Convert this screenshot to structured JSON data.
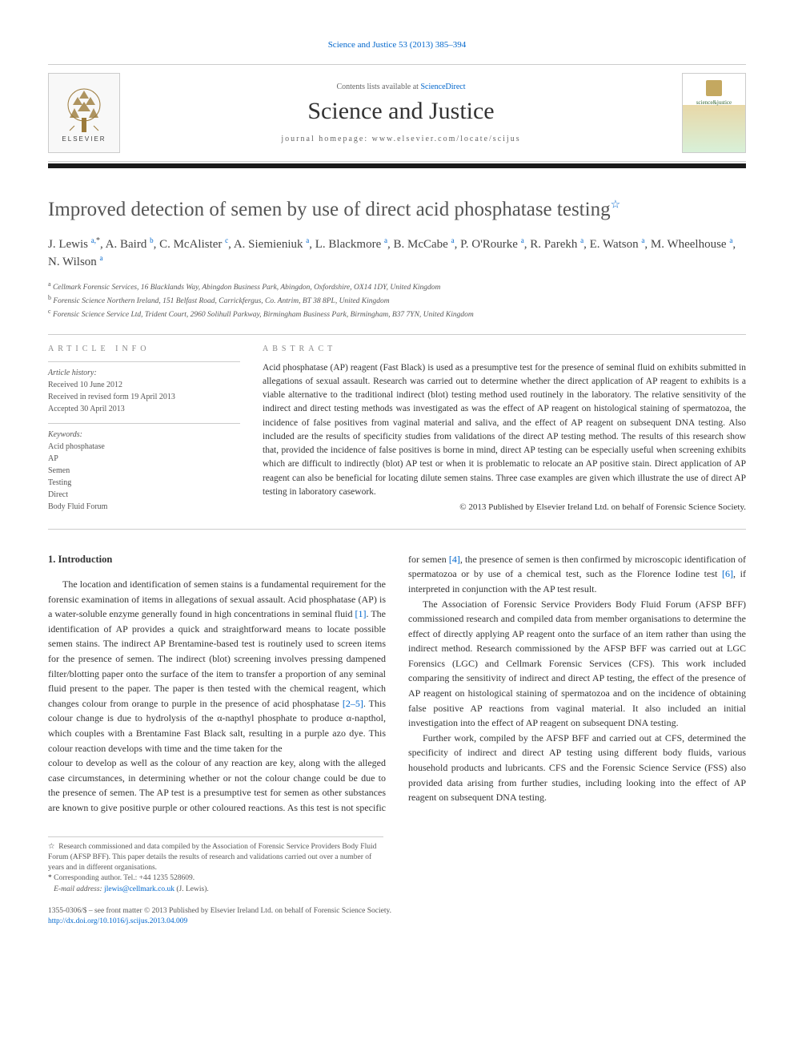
{
  "top_link": {
    "journal": "Science and Justice",
    "citation": "53 (2013) 385–394"
  },
  "masthead": {
    "elsevier": "ELSEVIER",
    "contents_prefix": "Contents lists available at ",
    "contents_link": "ScienceDirect",
    "journal_title": "Science and Justice",
    "homepage_label": "journal homepage: www.elsevier.com/locate/scijus",
    "cover_text": "science&justice"
  },
  "black_bar_color": "#1a1a1a",
  "article": {
    "title": "Improved detection of semen by use of direct acid phosphatase testing",
    "title_star": "☆",
    "authors_html": "J. Lewis <span class='sup'>a,</span><span class='sup-star'>*</span>, A. Baird <span class='sup'>b</span>, C. McAlister <span class='sup'>c</span>, A. Siemieniuk <span class='sup'>a</span>, L. Blackmore <span class='sup'>a</span>, B. McCabe <span class='sup'>a</span>, P. O'Rourke <span class='sup'>a</span>, R. Parekh <span class='sup'>a</span>, E. Watson <span class='sup'>a</span>, M. Wheelhouse <span class='sup'>a</span>, N. Wilson <span class='sup'>a</span>",
    "affiliations": [
      {
        "tag": "a",
        "text": "Cellmark Forensic Services, 16 Blacklands Way, Abingdon Business Park, Abingdon, Oxfordshire, OX14 1DY, United Kingdom"
      },
      {
        "tag": "b",
        "text": "Forensic Science Northern Ireland, 151 Belfast Road, Carrickfergus, Co. Antrim, BT 38 8PL, United Kingdom"
      },
      {
        "tag": "c",
        "text": "Forensic Science Service Ltd, Trident Court, 2960 Solihull Parkway, Birmingham Business Park, Birmingham, B37 7YN, United Kingdom"
      }
    ]
  },
  "article_info": {
    "heading": "article info",
    "history_label": "Article history:",
    "history": [
      "Received 10 June 2012",
      "Received in revised form 19 April 2013",
      "Accepted 30 April 2013"
    ],
    "keywords_label": "Keywords:",
    "keywords": [
      "Acid phosphatase",
      "AP",
      "Semen",
      "Testing",
      "Direct",
      "Body Fluid Forum"
    ]
  },
  "abstract": {
    "heading": "abstract",
    "text": "Acid phosphatase (AP) reagent (Fast Black) is used as a presumptive test for the presence of seminal fluid on exhibits submitted in allegations of sexual assault. Research was carried out to determine whether the direct application of AP reagent to exhibits is a viable alternative to the traditional indirect (blot) testing method used routinely in the laboratory. The relative sensitivity of the indirect and direct testing methods was investigated as was the effect of AP reagent on histological staining of spermatozoa, the incidence of false positives from vaginal material and saliva, and the effect of AP reagent on subsequent DNA testing. Also included are the results of specificity studies from validations of the direct AP testing method. The results of this research show that, provided the incidence of false positives is borne in mind, direct AP testing can be especially useful when screening exhibits which are difficult to indirectly (blot) AP test or when it is problematic to relocate an AP positive stain. Direct application of AP reagent can also be beneficial for locating dilute semen stains. Three case examples are given which illustrate the use of direct AP testing in laboratory casework.",
    "copyright": "© 2013 Published by Elsevier Ireland Ltd. on behalf of Forensic Science Society."
  },
  "intro": {
    "heading": "1. Introduction",
    "p1": "The location and identification of semen stains is a fundamental requirement for the forensic examination of items in allegations of sexual assault. Acid phosphatase (AP) is a water-soluble enzyme generally found in high concentrations in seminal fluid <a class='ref' href='#'>[1]</a>. The identification of AP provides a quick and straightforward means to locate possible semen stains. The indirect AP Brentamine-based test is routinely used to screen items for the presence of semen. The indirect (blot) screening involves pressing dampened filter/blotting paper onto the surface of the item to transfer a proportion of any seminal fluid present to the paper. The paper is then tested with the chemical reagent, which changes colour from orange to purple in the presence of acid phosphatase <a class='ref' href='#'>[2–5]</a>. This colour change is due to hydrolysis of the α-napthyl phosphate to produce α-napthol, which couples with a Brentamine Fast Black salt, resulting in a purple azo dye. This colour reaction develops with time and the time taken for the",
    "p2": "colour to develop as well as the colour of any reaction are key, along with the alleged case circumstances, in determining whether or not the colour change could be due to the presence of semen. The AP test is a presumptive test for semen as other substances are known to give positive purple or other coloured reactions. As this test is not specific for semen <a class='ref' href='#'>[4]</a>, the presence of semen is then confirmed by microscopic identification of spermatozoa or by use of a chemical test, such as the Florence Iodine test <a class='ref' href='#'>[6]</a>, if interpreted in conjunction with the AP test result.",
    "p3": "The Association of Forensic Service Providers Body Fluid Forum (AFSP BFF) commissioned research and compiled data from member organisations to determine the effect of directly applying AP reagent onto the surface of an item rather than using the indirect method. Research commissioned by the AFSP BFF was carried out at LGC Forensics (LGC) and Cellmark Forensic Services (CFS). This work included comparing the sensitivity of indirect and direct AP testing, the effect of the presence of AP reagent on histological staining of spermatozoa and on the incidence of obtaining false positive AP reactions from vaginal material. It also included an initial investigation into the effect of AP reagent on subsequent DNA testing.",
    "p4": "Further work, compiled by the AFSP BFF and carried out at CFS, determined the specificity of indirect and direct AP testing using different body fluids, various household products and lubricants. CFS and the Forensic Science Service (FSS) also provided data arising from further studies, including looking into the effect of AP reagent on subsequent DNA testing."
  },
  "footnotes": {
    "star_text": "Research commissioned and data compiled by the Association of Forensic Service Providers Body Fluid Forum (AFSP BFF). This paper details the results of research and validations carried out over a number of years and in different organisations.",
    "corresponding": "Corresponding author. Tel.: +44 1235 528609.",
    "email_label": "E-mail address:",
    "email": "jlewis@cellmark.co.uk",
    "email_name": "(J. Lewis)."
  },
  "footer": {
    "issn_line": "1355-0306/$ – see front matter © 2013 Published by Elsevier Ireland Ltd. on behalf of Forensic Science Society.",
    "doi": "http://dx.doi.org/10.1016/j.scijus.2013.04.009"
  },
  "colors": {
    "link": "#0066cc",
    "text": "#333333",
    "muted": "#888888",
    "rule": "#cccccc"
  },
  "typography": {
    "body_pt": 12,
    "title_pt": 25,
    "journal_title_pt": 30,
    "abstract_pt": 11.5,
    "footnote_pt": 9.5
  }
}
